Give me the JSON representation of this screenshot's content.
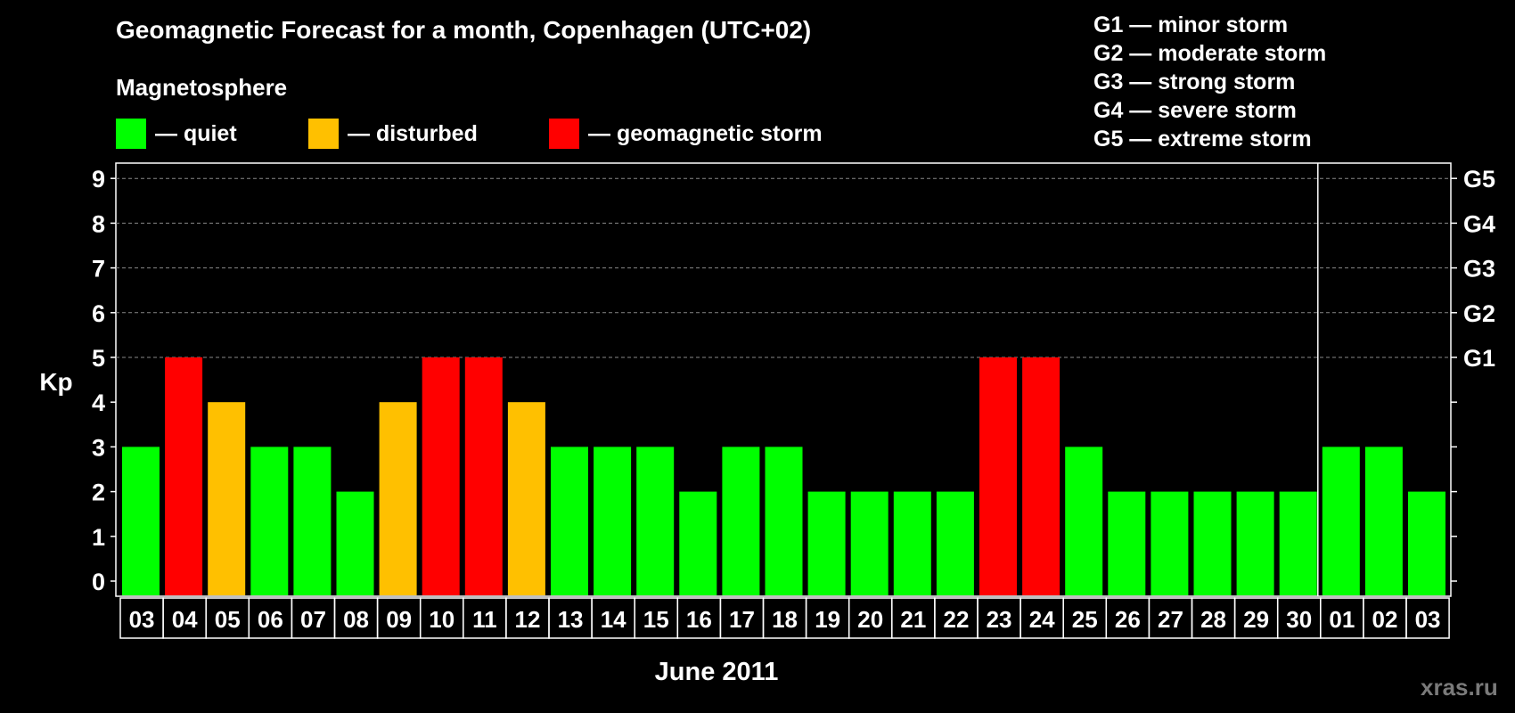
{
  "title": "Geomagnetic Forecast for a month, Copenhagen (UTC+02)",
  "subtitle": "Magnetosphere",
  "legend": [
    {
      "label": "— quiet",
      "color": "#00ff00"
    },
    {
      "label": "— disturbed",
      "color": "#ffc000"
    },
    {
      "label": "— geomagnetic storm",
      "color": "#ff0000"
    }
  ],
  "storm_levels": [
    "G1 — minor storm",
    "G2 — moderate storm",
    "G3 — strong storm",
    "G4 — severe storm",
    "G5 — extreme storm"
  ],
  "watermark": "xras.ru",
  "chart_data": {
    "type": "bar",
    "ylabel": "Kp",
    "xlabel": "June 2011",
    "ylim": [
      0,
      9
    ],
    "yticks": [
      0,
      1,
      2,
      3,
      4,
      5,
      6,
      7,
      8,
      9
    ],
    "right_ticks": [
      {
        "value": 5,
        "label": "G1"
      },
      {
        "value": 6,
        "label": "G2"
      },
      {
        "value": 7,
        "label": "G3"
      },
      {
        "value": 8,
        "label": "G4"
      },
      {
        "value": 9,
        "label": "G5"
      }
    ],
    "grid": "dashed horizontal at 5–9",
    "month_divider_after": "30",
    "categories": [
      "03",
      "04",
      "05",
      "06",
      "07",
      "08",
      "09",
      "10",
      "11",
      "12",
      "13",
      "14",
      "15",
      "16",
      "17",
      "18",
      "19",
      "20",
      "21",
      "22",
      "23",
      "24",
      "25",
      "26",
      "27",
      "28",
      "29",
      "30",
      "01",
      "02",
      "03"
    ],
    "values": [
      3,
      5,
      4,
      3,
      3,
      2,
      4,
      5,
      5,
      4,
      3,
      3,
      3,
      2,
      3,
      3,
      2,
      2,
      2,
      2,
      5,
      5,
      3,
      2,
      2,
      2,
      2,
      2,
      3,
      3,
      2
    ],
    "colors": {
      "quiet": "#00ff00",
      "disturbed": "#ffc000",
      "storm": "#ff0000"
    }
  }
}
